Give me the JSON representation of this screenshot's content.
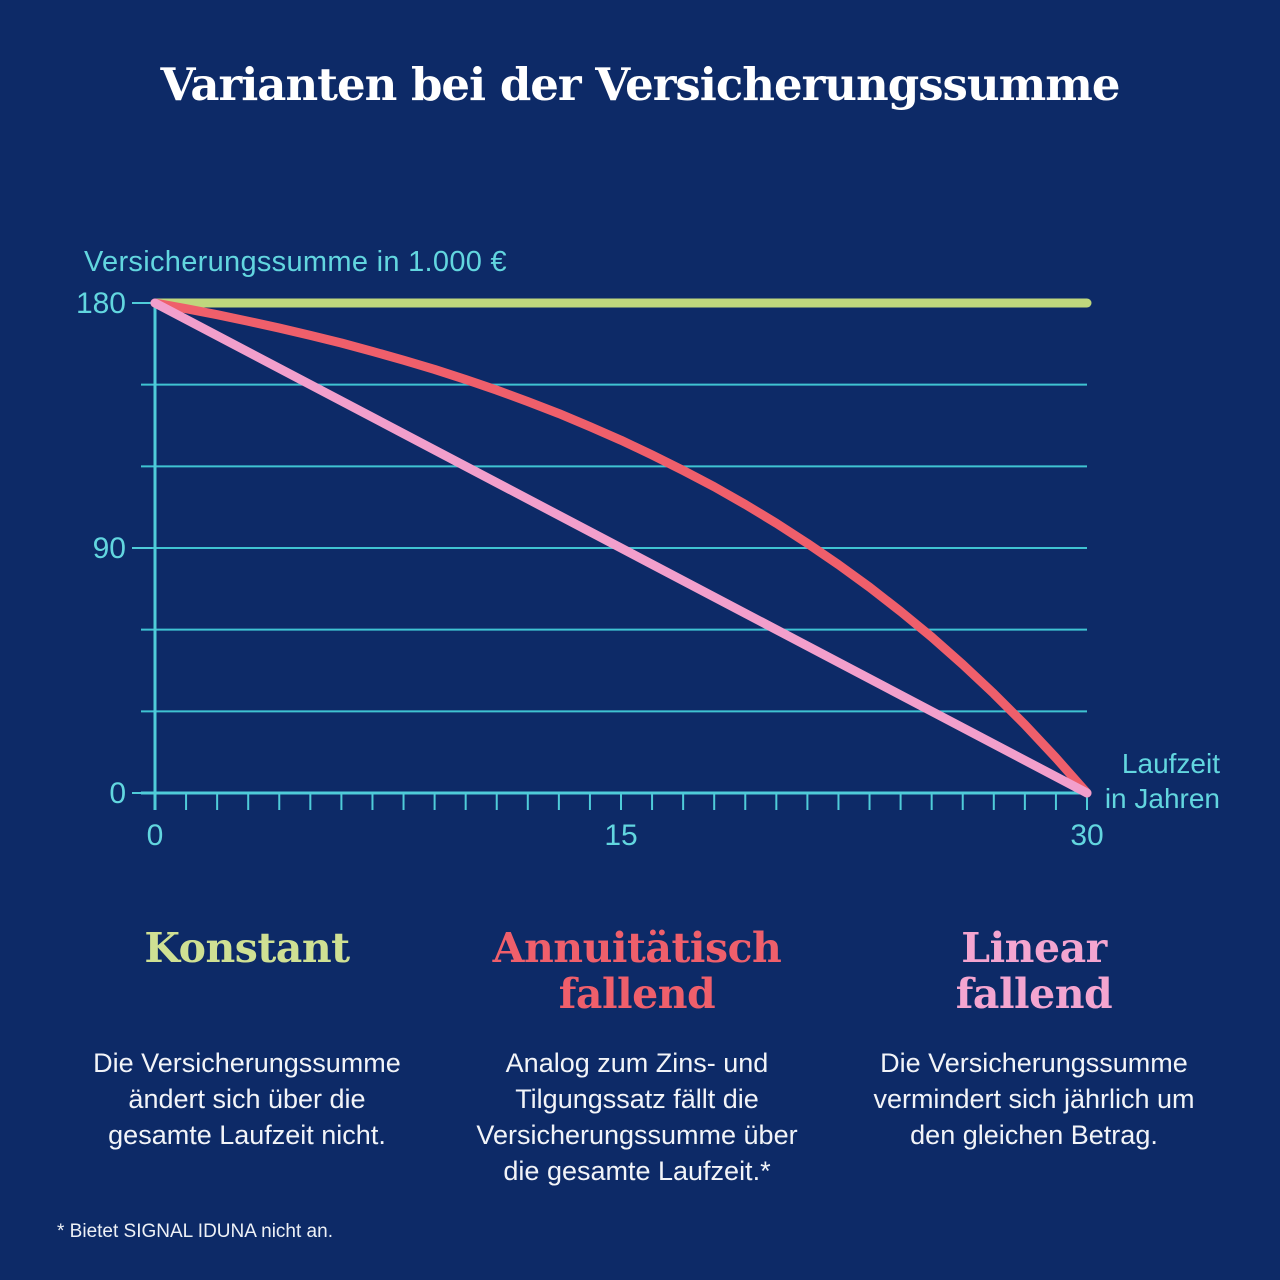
{
  "page": {
    "title": "Varianten bei der Versicherungssumme",
    "footnote": "* Bietet SIGNAL IDUNA nicht an.",
    "background_color": "#0d2a67",
    "title_color": "#ffffff",
    "body_text_color": "#f2f4f8"
  },
  "chart_data": {
    "type": "line",
    "title": "",
    "y_axis_title": "Versicherungssumme in 1.000 €",
    "x_axis_title": "Laufzeit\nin Jahren",
    "x_range": [
      0,
      30
    ],
    "y_range": [
      0,
      180
    ],
    "x_tick_labels": [
      0,
      15,
      30
    ],
    "y_tick_labels": [
      180,
      90,
      0
    ],
    "x_minor_tick_step": 1,
    "gridline_values": [
      30,
      60,
      90,
      120,
      150
    ],
    "grid_on": true,
    "legend_position": "below",
    "axis_color": "#4fccd9",
    "gridline_color": "#3fc3d2",
    "tick_label_color": "#62d6df",
    "series": [
      {
        "name": "Konstant",
        "color": "#bfd77d",
        "x": [
          0,
          30
        ],
        "y": [
          180,
          180
        ]
      },
      {
        "name": "Annuitätisch fallend",
        "color": "#ef5f6b",
        "x": [
          0,
          1,
          2,
          3,
          4,
          5,
          6,
          7,
          8,
          9,
          10,
          11,
          12,
          13,
          14,
          15,
          16,
          17,
          18,
          19,
          20,
          21,
          22,
          23,
          24,
          25,
          26,
          27,
          28,
          29,
          30
        ],
        "y": [
          180,
          177.9,
          175.7,
          173.3,
          170.8,
          168.1,
          165.3,
          162.2,
          159,
          155.6,
          151.9,
          148,
          143.8,
          139.4,
          134.6,
          129.6,
          124.2,
          118.5,
          112.5,
          106,
          99.1,
          91.7,
          83.9,
          75.6,
          66.7,
          57.3,
          47.2,
          36.5,
          25.1,
          12.9,
          0
        ]
      },
      {
        "name": "Linear fallend",
        "color": "#f29fcc",
        "x": [
          0,
          30
        ],
        "y": [
          180,
          0
        ]
      }
    ]
  },
  "columns": [
    {
      "heading": "Konstant",
      "color": "#cfe093",
      "description": "Die Versicherungssumme\nändert sich über die\ngesamte Laufzeit nicht."
    },
    {
      "heading": "Annuitätisch\nfallend",
      "color": "#ef5f6b",
      "description": "Analog zum Zins- und\nTilgungssatz fällt die\nVersicherungssumme über\ndie gesamte Laufzeit.*"
    },
    {
      "heading": "Linear\nfallend",
      "color": "#f4a5d0",
      "description": "Die Versicherungssumme\nvermindert sich jährlich um\nden gleichen Betrag."
    }
  ]
}
